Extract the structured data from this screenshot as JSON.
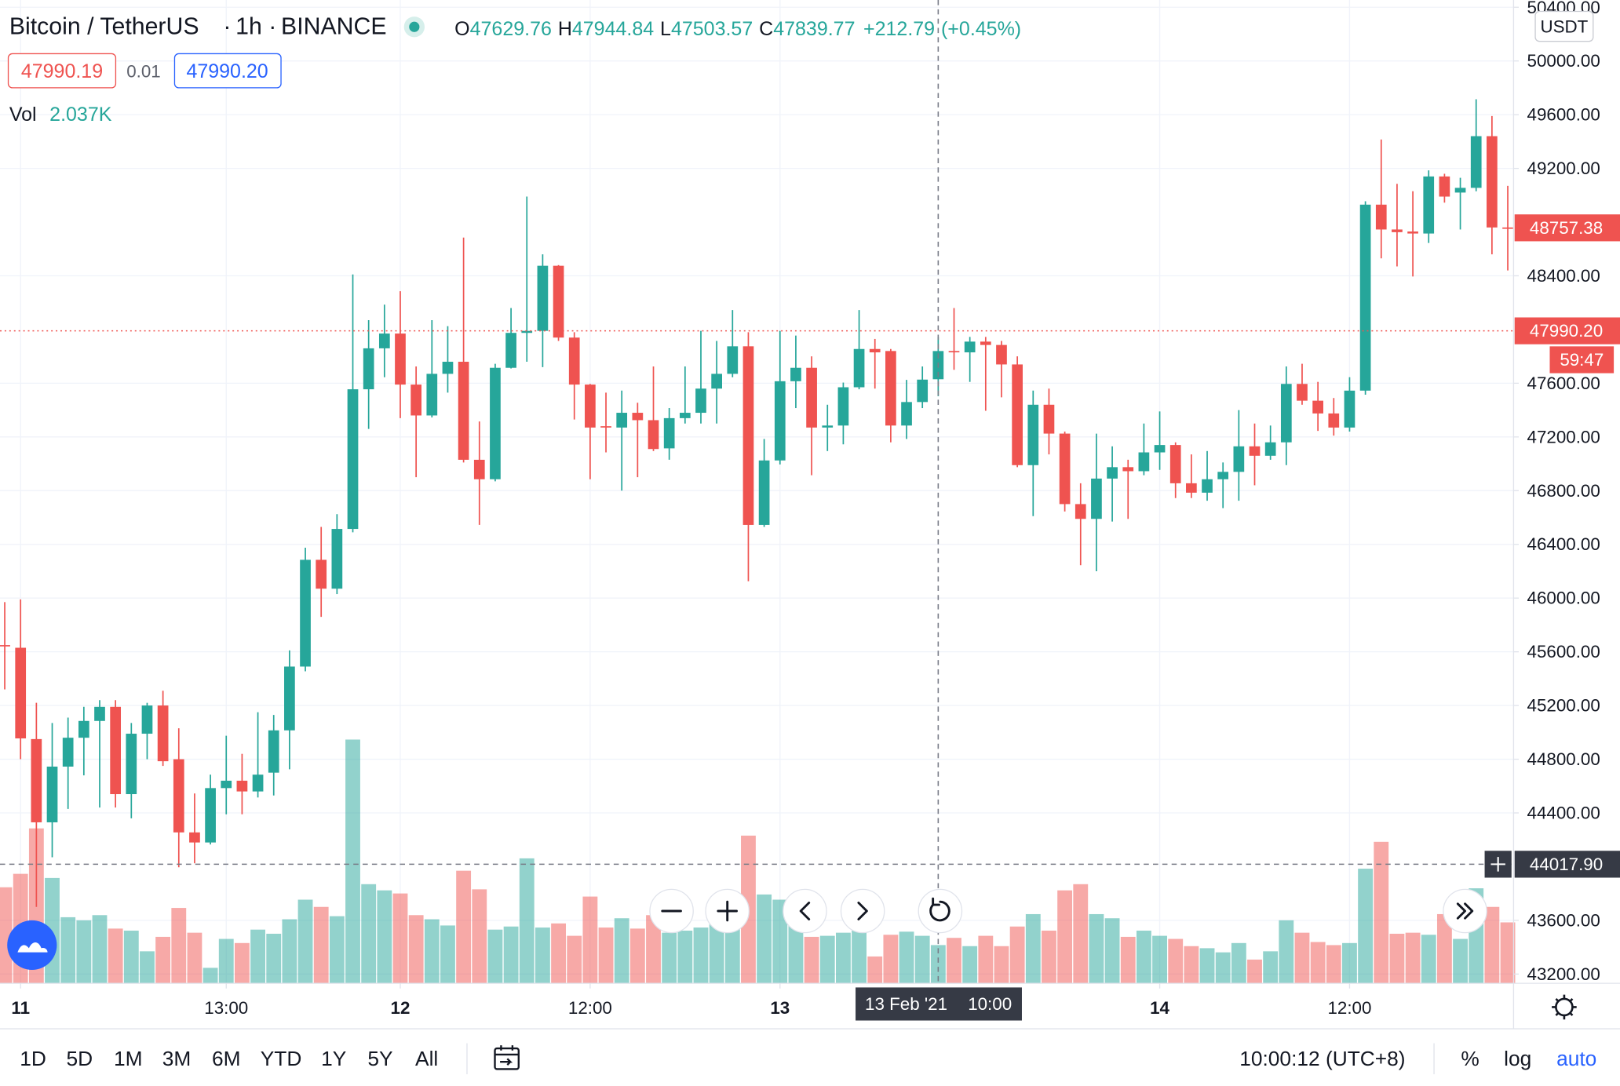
{
  "chart_data": {
    "type": "candlestick",
    "title": "Bitcoin / TetherUS",
    "separator": "·",
    "interval": "1h",
    "exchange": "BINANCE",
    "ohlc_labels": [
      "O",
      "H",
      "L",
      "C"
    ],
    "change": {
      "value": 212.79,
      "label": "+212.79"
    },
    "change_pct": {
      "value": 0.45,
      "label": "(+0.45%)"
    },
    "bid": 47990.19,
    "spread": 0.01,
    "ask": {
      "value": 47990.2,
      "label": "47990.20"
    },
    "volume_title": "Vol",
    "volume_label": "2.037K",
    "currency": "USDT",
    "up_color": "#26a69a",
    "down_color": "#ef5350",
    "x": [
      "2021-02-10 23:00",
      "2021-02-11 00:00",
      "2021-02-11 01:00",
      "2021-02-11 02:00",
      "2021-02-11 03:00",
      "2021-02-11 04:00",
      "2021-02-11 05:00",
      "2021-02-11 06:00",
      "2021-02-11 07:00",
      "2021-02-11 08:00",
      "2021-02-11 09:00",
      "2021-02-11 10:00",
      "2021-02-11 11:00",
      "2021-02-11 12:00",
      "2021-02-11 13:00",
      "2021-02-11 14:00",
      "2021-02-11 15:00",
      "2021-02-11 16:00",
      "2021-02-11 17:00",
      "2021-02-11 18:00",
      "2021-02-11 19:00",
      "2021-02-11 20:00",
      "2021-02-11 21:00",
      "2021-02-11 22:00",
      "2021-02-11 23:00",
      "2021-02-12 00:00",
      "2021-02-12 01:00",
      "2021-02-12 02:00",
      "2021-02-12 03:00",
      "2021-02-12 04:00",
      "2021-02-12 05:00",
      "2021-02-12 06:00",
      "2021-02-12 07:00",
      "2021-02-12 08:00",
      "2021-02-12 09:00",
      "2021-02-12 10:00",
      "2021-02-12 11:00",
      "2021-02-12 12:00",
      "2021-02-12 13:00",
      "2021-02-12 14:00",
      "2021-02-12 15:00",
      "2021-02-12 16:00",
      "2021-02-12 17:00",
      "2021-02-12 18:00",
      "2021-02-12 19:00",
      "2021-02-12 20:00",
      "2021-02-12 21:00",
      "2021-02-12 22:00",
      "2021-02-12 23:00",
      "2021-02-13 00:00",
      "2021-02-13 01:00",
      "2021-02-13 02:00",
      "2021-02-13 03:00",
      "2021-02-13 04:00",
      "2021-02-13 05:00",
      "2021-02-13 06:00",
      "2021-02-13 07:00",
      "2021-02-13 08:00",
      "2021-02-13 09:00",
      "2021-02-13 10:00",
      "2021-02-13 11:00",
      "2021-02-13 12:00",
      "2021-02-13 13:00",
      "2021-02-13 14:00",
      "2021-02-13 15:00",
      "2021-02-13 16:00",
      "2021-02-13 17:00",
      "2021-02-13 18:00",
      "2021-02-13 19:00",
      "2021-02-13 20:00",
      "2021-02-13 21:00",
      "2021-02-13 22:00",
      "2021-02-13 23:00",
      "2021-02-14 00:00",
      "2021-02-14 01:00",
      "2021-02-14 02:00",
      "2021-02-14 03:00",
      "2021-02-14 04:00",
      "2021-02-14 05:00",
      "2021-02-14 06:00",
      "2021-02-14 07:00",
      "2021-02-14 08:00",
      "2021-02-14 09:00",
      "2021-02-14 10:00",
      "2021-02-14 11:00",
      "2021-02-14 12:00",
      "2021-02-14 13:00",
      "2021-02-14 14:00",
      "2021-02-14 15:00",
      "2021-02-14 16:00",
      "2021-02-14 17:00",
      "2021-02-14 18:00",
      "2021-02-14 19:00",
      "2021-02-14 20:00",
      "2021-02-14 21:00",
      "2021-02-14 22:00"
    ],
    "open": [
      45650,
      45630,
      44950,
      44330,
      44745,
      44960,
      45085,
      45190,
      44540,
      44990,
      45200,
      44800,
      44255,
      44180,
      44585,
      44640,
      44560,
      44700,
      45015,
      45490,
      46285,
      46070,
      46515,
      47555,
      47860,
      47970,
      47590,
      47360,
      47670,
      47760,
      47030,
      46885,
      47715,
      47975,
      47990,
      48475,
      47940,
      47590,
      47280,
      47270,
      47380,
      47325,
      47115,
      47340,
      47380,
      47560,
      47670,
      47875,
      46545,
      47025,
      47615,
      47715,
      47270,
      47285,
      47570,
      47855,
      47840,
      47285,
      47460,
      47629.76,
      47840,
      47830,
      47910,
      47885,
      47740,
      46990,
      47440,
      47225,
      46700,
      46590,
      46890,
      46975,
      46945,
      47085,
      47140,
      46855,
      46785,
      46885,
      46940,
      47130,
      47060,
      47160,
      47595,
      47470,
      47375,
      47270,
      47545,
      48930,
      48745,
      48730,
      48715,
      49140,
      49020,
      49055,
      49440,
      48760
    ],
    "high": [
      45970,
      45990,
      45220,
      45070,
      45110,
      45190,
      45240,
      45240,
      45070,
      45220,
      45310,
      45030,
      44545,
      44685,
      44975,
      44840,
      45150,
      45130,
      45610,
      46375,
      46530,
      46625,
      48410,
      48070,
      48185,
      48285,
      47725,
      48070,
      48025,
      48685,
      47315,
      47745,
      48160,
      48990,
      48560,
      48480,
      47980,
      47595,
      47530,
      47545,
      47455,
      47725,
      47415,
      47725,
      47990,
      47915,
      48145,
      47980,
      47185,
      47990,
      47955,
      47800,
      47440,
      47605,
      48145,
      47930,
      47855,
      47625,
      47725,
      47944.84,
      48160,
      47945,
      47945,
      47915,
      47800,
      47545,
      47560,
      47240,
      46855,
      47225,
      47130,
      47030,
      47300,
      47390,
      47160,
      47070,
      47095,
      47010,
      47400,
      47300,
      47285,
      47725,
      47745,
      47610,
      47490,
      47645,
      48955,
      49415,
      49085,
      49030,
      49185,
      49160,
      49130,
      49715,
      49590,
      49070
    ],
    "low": [
      45320,
      44800,
      43700,
      44070,
      44430,
      44680,
      44440,
      44440,
      44360,
      44800,
      44750,
      43995,
      44025,
      44165,
      44390,
      44390,
      44515,
      44530,
      44725,
      45455,
      45860,
      46030,
      46490,
      47260,
      47645,
      47340,
      46900,
      47345,
      47530,
      47010,
      46545,
      46870,
      47710,
      47760,
      47720,
      47915,
      47330,
      46885,
      47085,
      46800,
      46900,
      47095,
      47030,
      47300,
      47300,
      47300,
      47645,
      46125,
      46530,
      46995,
      47415,
      46915,
      47095,
      47145,
      47555,
      47560,
      47160,
      47185,
      47415,
      47503.57,
      47700,
      47610,
      47395,
      47495,
      46975,
      46610,
      47070,
      46645,
      46245,
      46200,
      46570,
      46590,
      46915,
      46955,
      46745,
      46745,
      46725,
      46670,
      46725,
      46840,
      47030,
      46990,
      47440,
      47245,
      47210,
      47240,
      47515,
      48530,
      48470,
      48395,
      48645,
      48945,
      48745,
      49030,
      48560,
      48440
    ],
    "close": [
      45640,
      44955,
      44330,
      44745,
      44960,
      45085,
      45190,
      44540,
      44990,
      45200,
      44785,
      44255,
      44180,
      44585,
      44640,
      44560,
      44685,
      45015,
      45490,
      46285,
      46070,
      46515,
      47555,
      47860,
      47970,
      47590,
      47360,
      47670,
      47760,
      47030,
      46885,
      47715,
      47975,
      47990,
      48475,
      47940,
      47590,
      47270,
      47270,
      47380,
      47325,
      47110,
      47340,
      47380,
      47560,
      47670,
      47875,
      46545,
      47025,
      47615,
      47715,
      47270,
      47285,
      47570,
      47855,
      47830,
      47285,
      47460,
      47626.98,
      47839.77,
      47830,
      47910,
      47885,
      47740,
      46990,
      47440,
      47225,
      46700,
      46590,
      46890,
      46975,
      46945,
      47085,
      47140,
      46855,
      46785,
      46885,
      46940,
      47130,
      47060,
      47160,
      47595,
      47470,
      47375,
      47270,
      47545,
      48930,
      48745,
      48725,
      48715,
      49140,
      48990,
      49055,
      49440,
      48760,
      48757.38
    ],
    "volume": [
      5115,
      5830,
      8250,
      5610,
      3520,
      3355,
      3630,
      2915,
      2805,
      1705,
      2475,
      4015,
      2695,
      825,
      2365,
      2145,
      2860,
      2640,
      3410,
      4455,
      4070,
      3575,
      12980,
      5280,
      4950,
      4785,
      3630,
      3410,
      3080,
      5995,
      5005,
      2860,
      3025,
      6655,
      2970,
      3190,
      2530,
      4620,
      2970,
      3465,
      2915,
      3630,
      2695,
      2805,
      2970,
      3355,
      3025,
      7865,
      4730,
      4455,
      4455,
      2475,
      2530,
      2695,
      2805,
      1430,
      2585,
      2750,
      2530,
      2037,
      2420,
      1980,
      2530,
      1980,
      3025,
      3685,
      2805,
      4950,
      5280,
      3685,
      3465,
      2475,
      2805,
      2530,
      2365,
      1980,
      1870,
      1650,
      2145,
      1265,
      1705,
      3355,
      2695,
      2200,
      2035,
      2145,
      6105,
      7535,
      2640,
      2695,
      2585,
      3685,
      2365,
      5060,
      4070,
      3245
    ],
    "ylim": [
      43131,
      50454
    ],
    "yticks": [
      {
        "value": 50400,
        "label": "50400.00"
      },
      {
        "value": 50000,
        "label": "50000.00"
      },
      {
        "value": 49600,
        "label": "49600.00"
      },
      {
        "value": 49200,
        "label": "49200.00"
      },
      {
        "value": 48400,
        "label": "48400.00"
      },
      {
        "value": 47600,
        "label": "47600.00"
      },
      {
        "value": 47200,
        "label": "47200.00"
      },
      {
        "value": 46800,
        "label": "46800.00"
      },
      {
        "value": 46400,
        "label": "46400.00"
      },
      {
        "value": 46000,
        "label": "46000.00"
      },
      {
        "value": 45600,
        "label": "45600.00"
      },
      {
        "value": 45200,
        "label": "45200.00"
      },
      {
        "value": 44800,
        "label": "44800.00"
      },
      {
        "value": 44400,
        "label": "44400.00"
      },
      {
        "value": 43600,
        "label": "43600.00"
      },
      {
        "value": 43200,
        "label": "43200.00"
      }
    ],
    "xlim": [
      "2021-02-10 22:42",
      "2021-02-14 22:22"
    ],
    "xticks": [
      {
        "value": "2021-02-11 00:00",
        "label": "11"
      },
      {
        "value": "2021-02-11 13:00",
        "label": "13:00"
      },
      {
        "value": "2021-02-12 00:00",
        "label": "12"
      },
      {
        "value": "2021-02-12 12:00",
        "label": "12:00"
      },
      {
        "value": "2021-02-13 00:00",
        "label": "13"
      },
      {
        "value": "2021-02-14 00:00",
        "label": "14"
      },
      {
        "value": "2021-02-14 12:00",
        "label": "12:00"
      }
    ],
    "grid": true,
    "log_scale": false,
    "bid_ask_line": {
      "value": 47990.2,
      "label": "47990.20"
    },
    "countdown": "59:47",
    "crosshair": {
      "x": "2021-02-13 10:00",
      "date_label": "13 Feb '21",
      "time_label": "10:00",
      "y": {
        "value": 44017.9,
        "label": "44017.90"
      }
    }
  },
  "toolbar": {
    "periods": [
      "1D",
      "5D",
      "1M",
      "3M",
      "6M",
      "YTD",
      "1Y",
      "5Y",
      "All"
    ],
    "clock": "10:00:12 (UTC+8)",
    "percent": "%",
    "log": "log",
    "auto": "auto"
  }
}
